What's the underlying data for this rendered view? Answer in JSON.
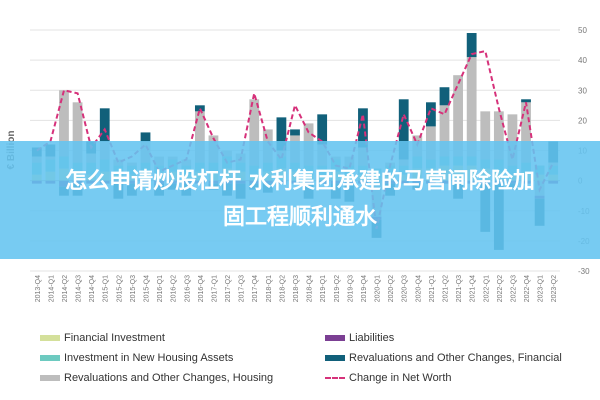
{
  "chart_data": {
    "type": "bar",
    "stacked": true,
    "ylabel": "€ Billion",
    "ylim": [
      -30,
      50
    ],
    "yticks": [
      50,
      40,
      30,
      20,
      10,
      0,
      -10,
      -20,
      -30
    ],
    "grid": true,
    "legend_position": "bottom",
    "categories": [
      "2013-Q4",
      "2014-Q1",
      "2014-Q2",
      "2014-Q3",
      "2014-Q4",
      "2015-Q1",
      "2015-Q2",
      "2015-Q3",
      "2015-Q4",
      "2016-Q1",
      "2016-Q2",
      "2016-Q3",
      "2016-Q4",
      "2017-Q1",
      "2017-Q2",
      "2017-Q3",
      "2017-Q4",
      "2018-Q1",
      "2018-Q2",
      "2018-Q3",
      "2018-Q4",
      "2019-Q1",
      "2019-Q2",
      "2019-Q3",
      "2019-Q4",
      "2020-Q1",
      "2020-Q2",
      "2020-Q3",
      "2020-Q4",
      "2021-Q1",
      "2021-Q2",
      "2021-Q3",
      "2021-Q4",
      "2022-Q1",
      "2022-Q2",
      "2022-Q3",
      "2022-Q4",
      "2023-Q1",
      "2023-Q2"
    ],
    "series": [
      {
        "name": "Financial Investment",
        "color": "#d4e09b",
        "kind": "bar",
        "values": [
          2,
          3,
          4,
          3,
          2,
          3,
          2,
          2,
          3,
          2,
          3,
          2,
          3,
          3,
          4,
          3,
          2,
          3,
          4,
          3,
          2,
          2,
          3,
          2,
          2,
          1,
          2,
          2,
          4,
          4,
          5,
          5,
          5,
          4,
          3,
          2,
          3,
          2,
          2
        ]
      },
      {
        "name": "Investment in New Housing Assets",
        "color": "#6dcac0",
        "kind": "bar",
        "values": [
          4,
          4,
          4,
          3,
          4,
          4,
          3,
          3,
          3,
          3,
          4,
          3,
          3,
          3,
          4,
          3,
          3,
          3,
          4,
          3,
          3,
          3,
          4,
          3,
          3,
          3,
          3,
          3,
          4,
          3,
          3,
          3,
          3,
          3,
          4,
          3,
          3,
          3,
          3
        ]
      },
      {
        "name": "Revaluations and Other Changes, Housing",
        "color": "#bdbdbd",
        "kind": "bar",
        "values": [
          2,
          1,
          22,
          20,
          3,
          6,
          2,
          1,
          7,
          3,
          1,
          2,
          17,
          9,
          2,
          3,
          22,
          11,
          2,
          9,
          14,
          7,
          1,
          3,
          6,
          -12,
          1,
          2,
          7,
          11,
          17,
          27,
          33,
          16,
          16,
          17,
          20,
          -5,
          1
        ]
      },
      {
        "name": "Liabilities",
        "color": "#7b3f93",
        "kind": "bar",
        "values": [
          -1,
          -1,
          -2,
          -1,
          -1,
          -1,
          -1,
          -1,
          -1,
          -1,
          -1,
          -1,
          -1,
          -1,
          -1,
          -1,
          -1,
          -1,
          -1,
          -1,
          -1,
          -1,
          -1,
          -1,
          -1,
          -1,
          -1,
          -1,
          -1,
          -1,
          -1,
          -1,
          -1,
          -1,
          -1,
          -1,
          -1,
          -1,
          -1
        ]
      },
      {
        "name": "Revaluations and Other Changes, Financial",
        "color": "#11607a",
        "kind": "bar",
        "values": [
          3,
          4,
          -3,
          -4,
          4,
          11,
          -5,
          -4,
          3,
          -4,
          -2,
          -4,
          2,
          -2,
          -4,
          -5,
          -2,
          -3,
          11,
          2,
          -5,
          10,
          -5,
          -6,
          13,
          -6,
          -4,
          20,
          -2,
          8,
          6,
          -5,
          8,
          -16,
          -22,
          -2,
          1,
          -9,
          7
        ]
      },
      {
        "name": "Change in Net Worth",
        "color": "#d6317a",
        "kind": "line",
        "values": [
          10,
          13,
          30,
          29,
          11,
          17,
          6,
          8,
          12,
          3,
          5,
          7,
          24,
          14,
          6,
          7,
          29,
          13,
          7,
          25,
          16,
          13,
          5,
          4,
          22,
          -16,
          5,
          22,
          12,
          24,
          22,
          32,
          42,
          43,
          24,
          7,
          26,
          -3,
          6
        ]
      }
    ]
  },
  "banner": {
    "line1": "怎么申请炒股杠杆 水利集团承建的马营闸除险加",
    "line2": "固工程顺利通水"
  }
}
